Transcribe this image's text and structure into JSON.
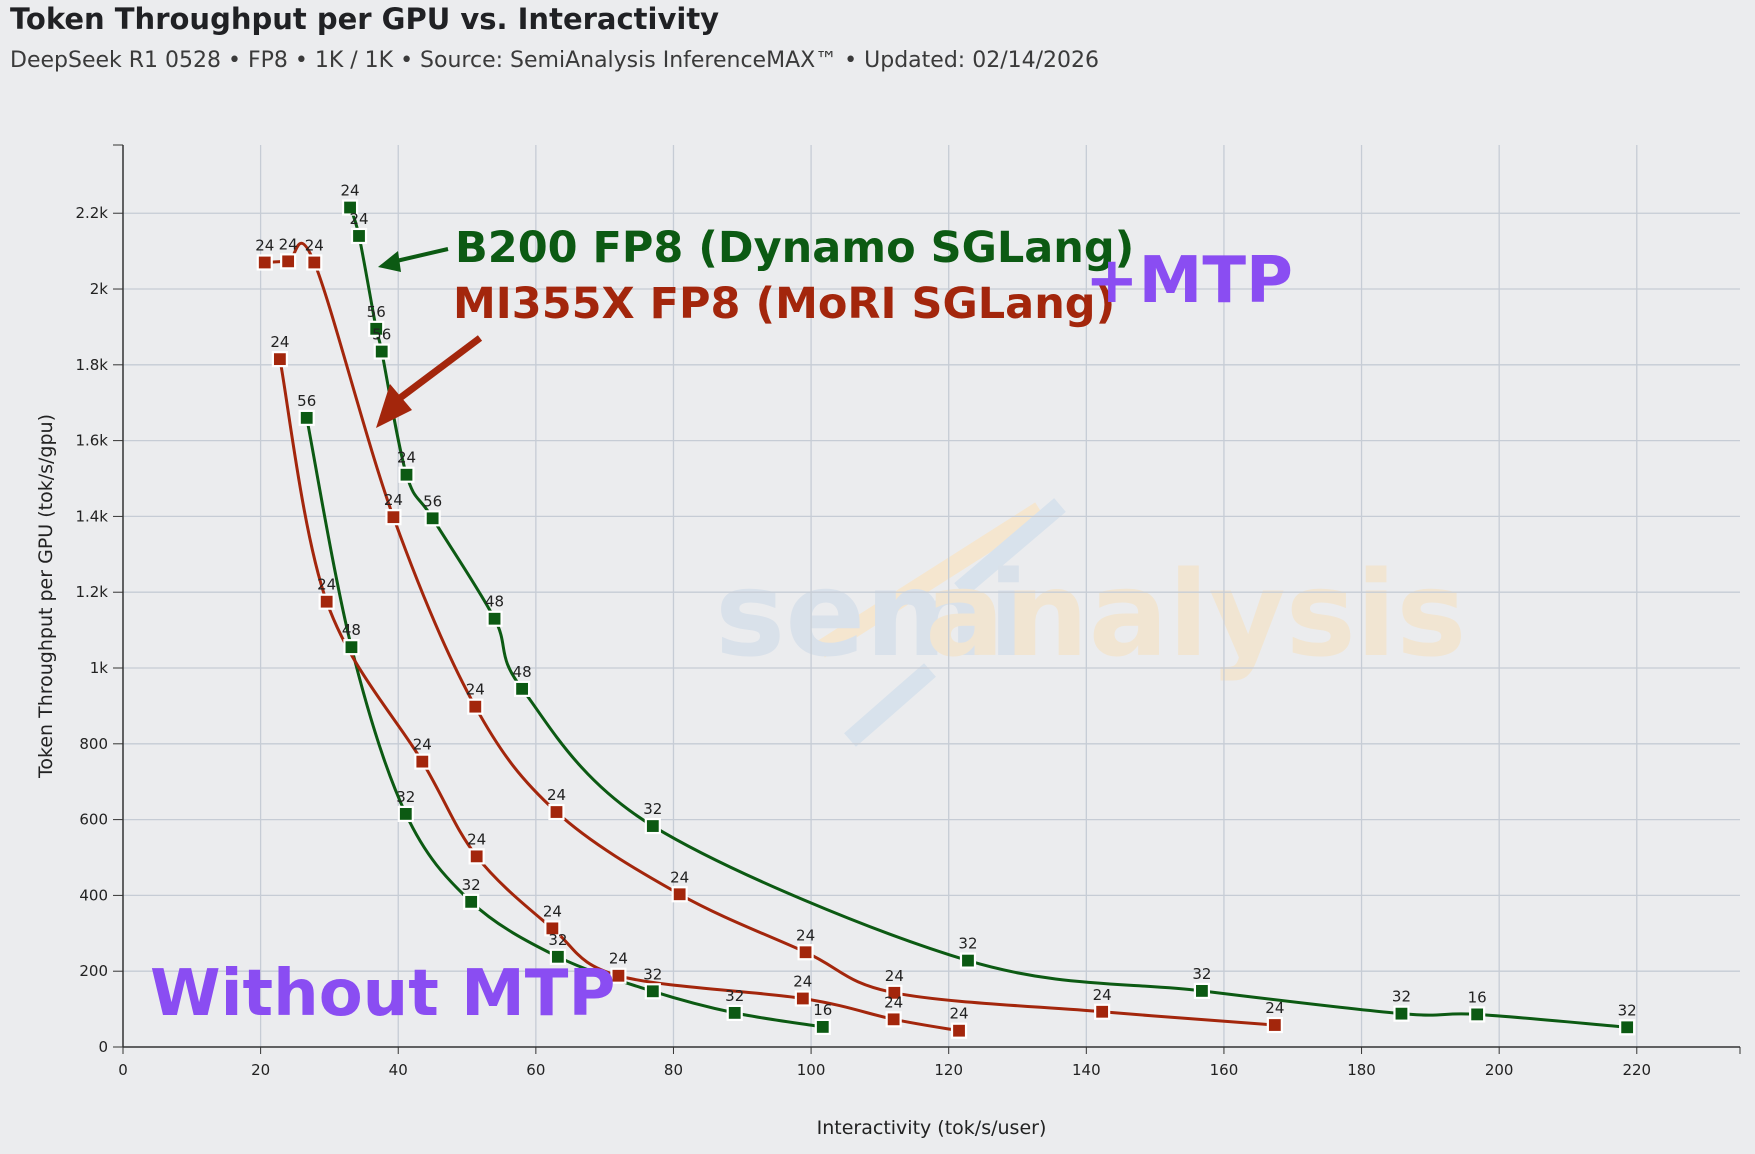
{
  "header": {
    "title": "Token Throughput per GPU vs. Interactivity",
    "subtitle": "DeepSeek R1 0528 • FP8 • 1K / 1K • Source: SemiAnalysis InferenceMAX™ • Updated: 02/14/2026"
  },
  "annotations": {
    "b200_label": "B200 FP8 (Dynamo SGLang)",
    "mi355x_label": "MI355X FP8 (MoRI SGLang)",
    "mtp_label": "+MTP",
    "no_mtp_label": "Without MTP",
    "watermark_a": "semi",
    "watermark_b": "analysis"
  },
  "colors": {
    "b200": "#0c5a13",
    "mi355x": "#a3260c",
    "mtp": "#8a4df2"
  },
  "chart_data": {
    "type": "line",
    "title": "Token Throughput per GPU vs. Interactivity",
    "xlabel": "Interactivity (tok/s/user)",
    "ylabel": "Token Throughput per GPU (tok/s/gpu)",
    "xlim": [
      0,
      235
    ],
    "ylim": [
      0,
      2380
    ],
    "x_ticks": [
      0,
      20,
      40,
      60,
      80,
      100,
      120,
      140,
      160,
      180,
      200,
      220
    ],
    "x_tick_labels": [
      "0",
      "20",
      "40",
      "60",
      "80",
      "100",
      "120",
      "140",
      "160",
      "180",
      "200",
      "220"
    ],
    "y_ticks": [
      0,
      200,
      400,
      600,
      800,
      1000,
      1200,
      1400,
      1600,
      1800,
      2000,
      2200
    ],
    "y_tick_labels": [
      "0",
      "200",
      "400",
      "600",
      "800",
      "1k",
      "1.2k",
      "1.4k",
      "1.6k",
      "1.8k",
      "2k",
      "2.2k"
    ],
    "grid": true,
    "series": [
      {
        "name": "B200 FP8 (Dynamo SGLang) +MTP",
        "color_key": "b200",
        "points": [
          {
            "x": 33,
            "y": 2215,
            "label": "24"
          },
          {
            "x": 34.3,
            "y": 2140,
            "label": "24"
          },
          {
            "x": 36.8,
            "y": 1895,
            "label": "56"
          },
          {
            "x": 37.6,
            "y": 1835,
            "label": "56"
          },
          {
            "x": 41.2,
            "y": 1510,
            "label": "24"
          },
          {
            "x": 45,
            "y": 1395,
            "label": "56"
          },
          {
            "x": 54,
            "y": 1130,
            "label": "48"
          },
          {
            "x": 58,
            "y": 945,
            "label": "48"
          },
          {
            "x": 77,
            "y": 583,
            "label": "32"
          },
          {
            "x": 122.8,
            "y": 228,
            "label": "32"
          },
          {
            "x": 156.8,
            "y": 148,
            "label": "32"
          },
          {
            "x": 185.8,
            "y": 88,
            "label": "32"
          },
          {
            "x": 196.8,
            "y": 86,
            "label": "16"
          },
          {
            "x": 218.6,
            "y": 52,
            "label": "32"
          }
        ]
      },
      {
        "name": "MI355X FP8 (MoRI SGLang) +MTP",
        "color_key": "mi355x",
        "points": [
          {
            "x": 20.6,
            "y": 2070,
            "label": "24"
          },
          {
            "x": 24,
            "y": 2073,
            "label": "24"
          },
          {
            "x": 27.8,
            "y": 2070,
            "label": "24"
          },
          {
            "x": 39.3,
            "y": 1398,
            "label": "24"
          },
          {
            "x": 51.2,
            "y": 898,
            "label": "24"
          },
          {
            "x": 63,
            "y": 620,
            "label": "24"
          },
          {
            "x": 80.9,
            "y": 403,
            "label": "24"
          },
          {
            "x": 99.2,
            "y": 250,
            "label": "24"
          },
          {
            "x": 112.1,
            "y": 143,
            "label": "24"
          },
          {
            "x": 142.3,
            "y": 93,
            "label": "24"
          },
          {
            "x": 167.4,
            "y": 58,
            "label": "24"
          }
        ]
      },
      {
        "name": "B200 FP8 (Dynamo SGLang) without MTP",
        "color_key": "b200",
        "points": [
          {
            "x": 26.7,
            "y": 1660,
            "label": "56"
          },
          {
            "x": 33.2,
            "y": 1055,
            "label": "48"
          },
          {
            "x": 41.1,
            "y": 615,
            "label": "32"
          },
          {
            "x": 50.6,
            "y": 383,
            "label": "32"
          },
          {
            "x": 63.2,
            "y": 238,
            "label": "32"
          },
          {
            "x": 77,
            "y": 147,
            "label": "32"
          },
          {
            "x": 88.9,
            "y": 90,
            "label": "32"
          },
          {
            "x": 101.7,
            "y": 53,
            "label": "16"
          }
        ]
      },
      {
        "name": "MI355X FP8 (MoRI SGLang) without MTP",
        "color_key": "mi355x",
        "points": [
          {
            "x": 22.8,
            "y": 1815,
            "label": "24"
          },
          {
            "x": 29.6,
            "y": 1175,
            "label": "24"
          },
          {
            "x": 43.5,
            "y": 753,
            "label": "24"
          },
          {
            "x": 51.4,
            "y": 503,
            "label": "24"
          },
          {
            "x": 62.4,
            "y": 313,
            "label": "24"
          },
          {
            "x": 72,
            "y": 188,
            "label": "24"
          },
          {
            "x": 98.8,
            "y": 128,
            "label": "24"
          },
          {
            "x": 112,
            "y": 73,
            "label": "24"
          },
          {
            "x": 121.5,
            "y": 43,
            "label": "24"
          }
        ]
      }
    ]
  }
}
